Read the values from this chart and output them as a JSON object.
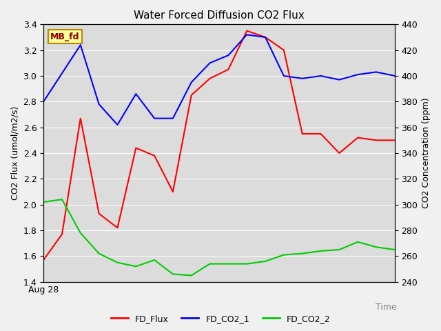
{
  "title": "Water Forced Diffusion CO2 Flux",
  "xlabel": "Time",
  "ylabel_left": "CO2 Flux (umol/m2/s)",
  "ylabel_right": "CO2 Concentration (ppm)",
  "x_label_start": "Aug 28",
  "annotation_text": "MB_fd",
  "ylim_left": [
    1.4,
    3.4
  ],
  "ylim_right": [
    240,
    440
  ],
  "yticks_left": [
    1.4,
    1.6,
    1.8,
    2.0,
    2.2,
    2.4,
    2.6,
    2.8,
    3.0,
    3.2,
    3.4
  ],
  "yticks_right": [
    240,
    260,
    280,
    300,
    320,
    340,
    360,
    380,
    400,
    420,
    440
  ],
  "fd_flux": [
    1.57,
    1.77,
    2.67,
    1.93,
    1.82,
    2.44,
    2.38,
    2.1,
    2.85,
    2.98,
    3.05,
    3.35,
    3.3,
    3.2,
    2.55,
    2.55,
    2.4,
    2.52,
    2.5,
    2.5
  ],
  "fd_co2_1": [
    380,
    402,
    424,
    378,
    362,
    386,
    367,
    367,
    395,
    410,
    416,
    432,
    430,
    400,
    398,
    400,
    397,
    401,
    403,
    400
  ],
  "fd_co2_2": [
    302,
    304,
    278,
    262,
    255,
    252,
    257,
    246,
    245,
    254,
    254,
    254,
    256,
    261,
    262,
    264,
    265,
    271,
    267,
    265
  ],
  "fd_flux_color": "#ff0000",
  "fd_co2_1_color": "#0000ff",
  "fd_co2_2_color": "#00cc00",
  "line_width": 1.5,
  "plot_bg_color": "#dcdcdc",
  "fig_bg_color": "#f0f0f0",
  "grid_color": "#ffffff",
  "annotation_bg": "#ffff99",
  "annotation_fg": "#8b0000",
  "annotation_border": "#b8860b",
  "tick_fontsize": 9,
  "label_fontsize": 9,
  "title_fontsize": 11
}
